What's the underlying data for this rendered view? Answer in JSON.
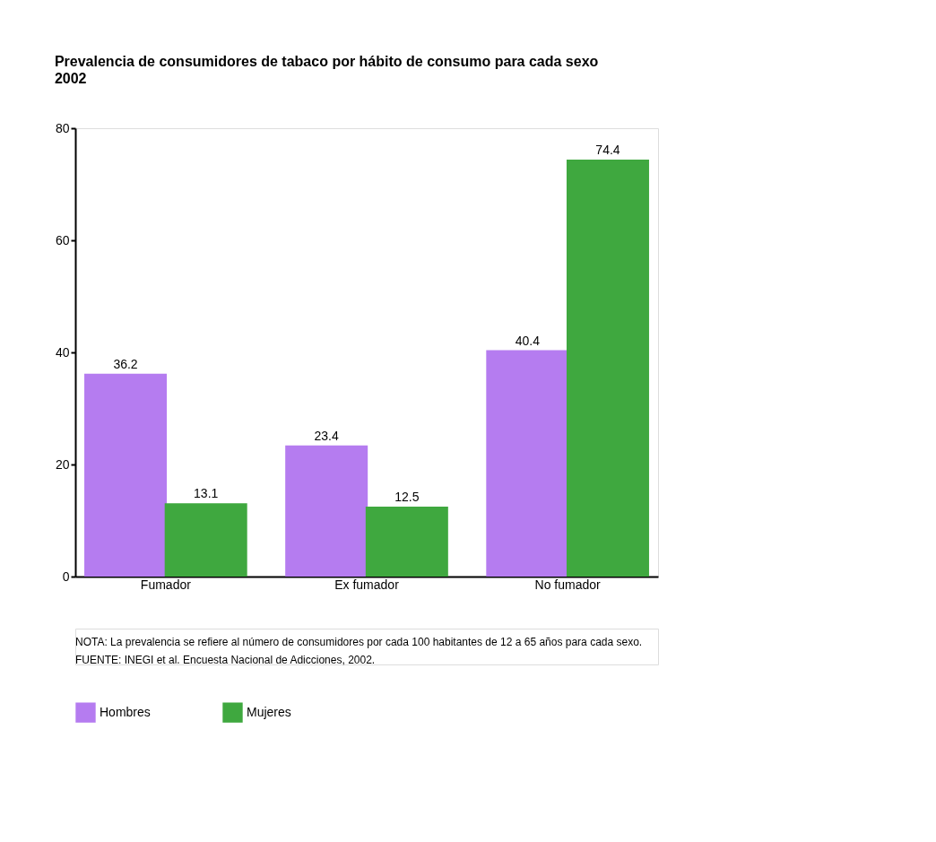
{
  "chart_data": {
    "type": "bar",
    "title": "Prevalencia de consumidores de tabaco por hábito de consumo para cada sexo",
    "subtitle": "2002",
    "categories": [
      "Fumador",
      "Ex fumador",
      "No fumador"
    ],
    "series": [
      {
        "name": "Hombres",
        "color": "#b57cf0",
        "values": [
          36.2,
          23.4,
          40.4
        ]
      },
      {
        "name": "Mujeres",
        "color": "#3fa83f",
        "values": [
          13.1,
          12.5,
          74.4
        ]
      }
    ],
    "ylim": [
      0,
      80
    ],
    "yticks": [
      0,
      20,
      40,
      60,
      80
    ],
    "grid": false,
    "legend": "bottom",
    "data_labels": true,
    "annotations": [
      "NOTA: La prevalencia se refiere al número de consumidores por cada 100 habitantes de 12 a 65 años para cada sexo.",
      "FUENTE: INEGI et al. Encuesta Nacional de Adicciones, 2002."
    ]
  }
}
